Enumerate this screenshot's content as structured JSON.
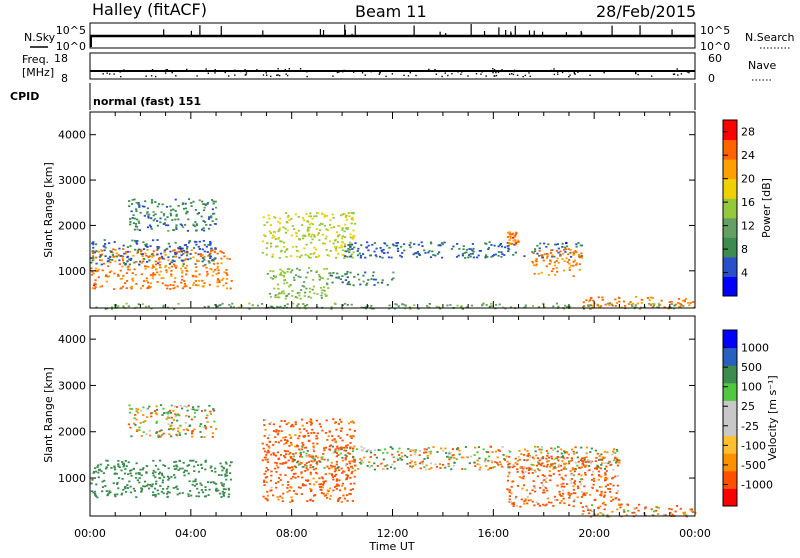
{
  "header": {
    "station": "Halley (fitACF)",
    "beam": "Beam 11",
    "date": "28/Feb/2015"
  },
  "strips": {
    "nsky_label": "N.Sky",
    "nsearch_label": "N.Search",
    "nsky_ticks": [
      "10^5",
      "10^0"
    ],
    "nsearch_ticks": [
      "10^5",
      "10^0"
    ],
    "freq_label": "Freq.",
    "freq_unit": "[MHz]",
    "freq_ticks": [
      "18",
      "8"
    ],
    "nave_label": "Nave",
    "nave_ticks": [
      "60",
      "0"
    ],
    "cpid_label": "CPID",
    "cpid_text": "normal (fast) 151"
  },
  "colors": {
    "power": [
      "#0000ff",
      "#2850c8",
      "#3c8c50",
      "#64a064",
      "#96c83c",
      "#f0d000",
      "#ffa000",
      "#ff6400",
      "#ff0000"
    ],
    "velocity": [
      "#ff0000",
      "#ff5000",
      "#ff9000",
      "#ffc030",
      "#c8c8c8",
      "#c8c8c8",
      "#50c840",
      "#3c8c50",
      "#2860c0",
      "#0000ff"
    ]
  },
  "chart_data": [
    {
      "type": "heatmap",
      "title": "",
      "xlabel": "Time UT",
      "ylabel": "Slant Range [km]",
      "x_ticks": [
        "00:00",
        "04:00",
        "08:00",
        "12:00",
        "16:00",
        "20:00",
        "00:00"
      ],
      "xlim_hours": [
        0,
        24
      ],
      "y_ticks": [
        1000,
        2000,
        3000,
        4000
      ],
      "ylim": [
        180,
        4500
      ],
      "colorbar_label": "Power [dB]",
      "colorbar_ticks": [
        4,
        8,
        12,
        16,
        20,
        24,
        28
      ],
      "colorbar_range": [
        0,
        30
      ],
      "regions": [
        {
          "t": [
            0.0,
            5.6
          ],
          "r": [
            600,
            1500
          ],
          "value": 24
        },
        {
          "t": [
            0.0,
            5.0
          ],
          "r": [
            1150,
            1700
          ],
          "value": 6
        },
        {
          "t": [
            1.5,
            5.0
          ],
          "r": [
            1900,
            2600
          ],
          "value": 8
        },
        {
          "t": [
            6.8,
            10.5
          ],
          "r": [
            1300,
            2300
          ],
          "value": 16
        },
        {
          "t": [
            7.0,
            9.5
          ],
          "r": [
            400,
            1100
          ],
          "value": 14
        },
        {
          "t": [
            9.5,
            12.0
          ],
          "r": [
            700,
            1000
          ],
          "value": 8
        },
        {
          "t": [
            10.0,
            19.5
          ],
          "r": [
            1300,
            1650
          ],
          "value": 6
        },
        {
          "t": [
            16.5,
            17.0
          ],
          "r": [
            1600,
            1900
          ],
          "value": 24
        },
        {
          "t": [
            17.5,
            19.5
          ],
          "r": [
            900,
            1500
          ],
          "value": 24
        },
        {
          "t": [
            19.5,
            24.0
          ],
          "r": [
            180,
            450
          ],
          "value": 24
        },
        {
          "t": [
            0.0,
            24.0
          ],
          "r": [
            180,
            300
          ],
          "value": 12
        }
      ]
    },
    {
      "type": "heatmap",
      "title": "",
      "xlabel": "Time UT",
      "ylabel": "Slant Range [km]",
      "x_ticks": [
        "00:00",
        "04:00",
        "08:00",
        "12:00",
        "16:00",
        "20:00",
        "00:00"
      ],
      "xlim_hours": [
        0,
        24
      ],
      "y_ticks": [
        1000,
        2000,
        3000,
        4000
      ],
      "ylim": [
        180,
        4500
      ],
      "colorbar_label": "Velocity [m s⁻¹]",
      "colorbar_ticks": [
        1000,
        500,
        100,
        25,
        -25,
        -100,
        -500,
        -1000
      ],
      "colorbar_range": [
        -1000,
        1000
      ],
      "regions": [
        {
          "t": [
            0.0,
            5.6
          ],
          "r": [
            600,
            1400
          ],
          "value": 300
        },
        {
          "t": [
            1.5,
            5.0
          ],
          "r": [
            1900,
            2600
          ],
          "value": 0
        },
        {
          "t": [
            6.8,
            10.5
          ],
          "r": [
            500,
            2300
          ],
          "value": -200
        },
        {
          "t": [
            8.0,
            21.0
          ],
          "r": [
            1200,
            1700
          ],
          "value": 0
        },
        {
          "t": [
            16.5,
            21.0
          ],
          "r": [
            400,
            1500
          ],
          "value": -150
        },
        {
          "t": [
            19.5,
            24.0
          ],
          "r": [
            180,
            450
          ],
          "value": -100
        }
      ]
    }
  ]
}
